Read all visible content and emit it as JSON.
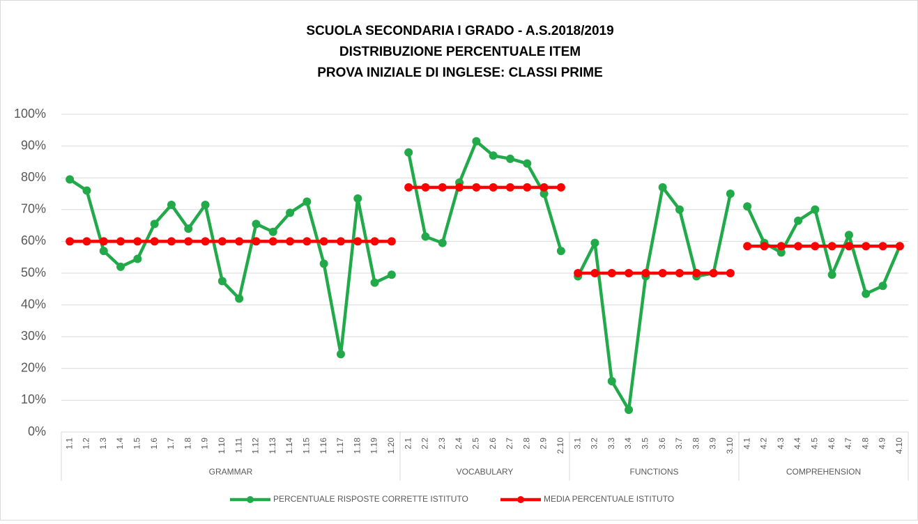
{
  "chart_data": {
    "type": "line",
    "title": [
      "SCUOLA SECONDARIA I GRADO - A.S.2018/2019",
      "DISTRIBUZIONE PERCENTUALE ITEM",
      "PROVA INIZIALE DI INGLESE: CLASSI PRIME"
    ],
    "groups": [
      {
        "name": "GRAMMAR",
        "categories": [
          "1.1",
          "1.2",
          "1.3",
          "1.4",
          "1.5",
          "1.6",
          "1.7",
          "1.8",
          "1.9",
          "1.10",
          "1.11",
          "1.12",
          "1.13",
          "1.14",
          "1.15",
          "1.16",
          "1.17",
          "1.18",
          "1.19",
          "1.20"
        ]
      },
      {
        "name": "VOCABULARY",
        "categories": [
          "2.1",
          "2.2",
          "2.3",
          "2.4",
          "2.5",
          "2.6",
          "2.7",
          "2.8",
          "2.9",
          "2.10"
        ]
      },
      {
        "name": "FUNCTIONS",
        "categories": [
          "3.1",
          "3.2",
          "3.3",
          "3.4",
          "3.5",
          "3.6",
          "3.7",
          "3.8",
          "3.9",
          "3.10"
        ]
      },
      {
        "name": "COMPREHENSION",
        "categories": [
          "4.1",
          "4.2",
          "4.3",
          "4.4",
          "4.5",
          "4.6",
          "4.7",
          "4.8",
          "4.9",
          "4.10"
        ]
      }
    ],
    "series": [
      {
        "name": "PERCENTUALE RISPOSTE CORRETTE ISTITUTO",
        "color": "#22a94a",
        "values": [
          79.5,
          76,
          57,
          52,
          54.5,
          65.5,
          71.5,
          64,
          71.5,
          47.5,
          42,
          65.5,
          63,
          69,
          72.5,
          53,
          24.5,
          73.5,
          47,
          49.5,
          88,
          61.5,
          59.5,
          78.5,
          91.5,
          87,
          86,
          84.5,
          75,
          57,
          49,
          59.5,
          16,
          7,
          49,
          77,
          70,
          49,
          50,
          75,
          71,
          59.5,
          56.5,
          66.5,
          70,
          49.5,
          62,
          43.5,
          46,
          58.5
        ]
      },
      {
        "name": "MEDIA PERCENTUALE  ISTITUTO",
        "color": "#ff0000",
        "values": [
          60,
          60,
          60,
          60,
          60,
          60,
          60,
          60,
          60,
          60,
          60,
          60,
          60,
          60,
          60,
          60,
          60,
          60,
          60,
          60,
          77,
          77,
          77,
          77,
          77,
          77,
          77,
          77,
          77,
          77,
          50,
          50,
          50,
          50,
          50,
          50,
          50,
          50,
          50,
          50,
          58.5,
          58.5,
          58.5,
          58.5,
          58.5,
          58.5,
          58.5,
          58.5,
          58.5,
          58.5
        ]
      }
    ],
    "ylim": [
      0,
      100
    ],
    "yticks": [
      {
        "value": 0,
        "label": "0%"
      },
      {
        "value": 10,
        "label": "10%"
      },
      {
        "value": 20,
        "label": "20%"
      },
      {
        "value": 30,
        "label": "30%"
      },
      {
        "value": 40,
        "label": "40%"
      },
      {
        "value": 50,
        "label": "50%"
      },
      {
        "value": 60,
        "label": "60%"
      },
      {
        "value": 70,
        "label": "70%"
      },
      {
        "value": 80,
        "label": "80%"
      },
      {
        "value": 90,
        "label": "90%"
      },
      {
        "value": 100,
        "label": "100%"
      }
    ],
    "grid": true,
    "legend": "bottom"
  }
}
